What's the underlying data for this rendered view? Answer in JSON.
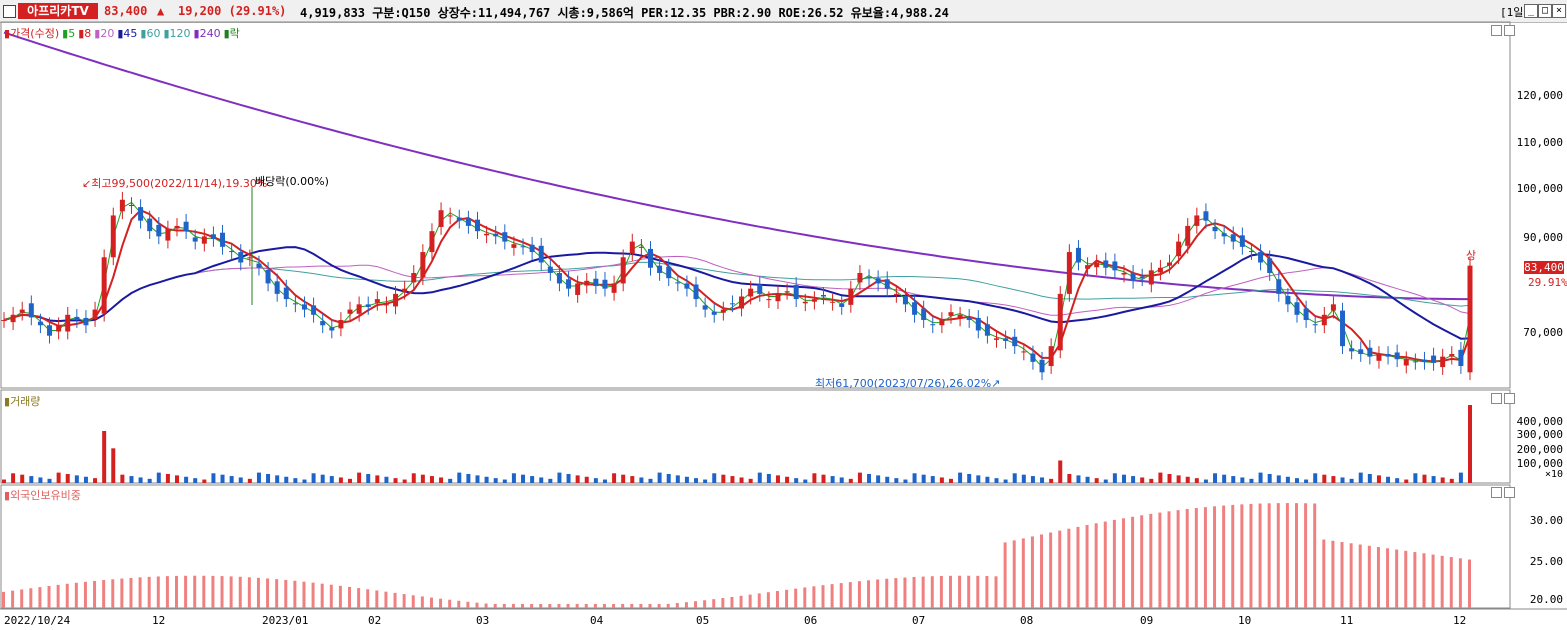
{
  "header": {
    "stock_name": "아프리카TV",
    "price": "83,400",
    "arrow": "▲",
    "change": "19,200",
    "change_pct": "(29.91%)",
    "info": "4,919,833  구분:Q150  상장수:11,494,767  시총:9,586억  PER:12.35  PBR:2.90  ROE:26.52  유보율:4,988.24",
    "period": "[1일]",
    "btn_min": "_",
    "btn_max": "□",
    "btn_close": "×"
  },
  "price_panel": {
    "legend": [
      {
        "label": "가격(수정)",
        "color": "#d42020"
      },
      {
        "label": "5",
        "color": "#20a020"
      },
      {
        "label": "8",
        "color": "#d42020"
      },
      {
        "label": "20",
        "color": "#c060c0"
      },
      {
        "label": "45",
        "color": "#1a1aa0"
      },
      {
        "label": "60",
        "color": "#40a0a0"
      },
      {
        "label": "120",
        "color": "#40a0a0"
      },
      {
        "label": "240",
        "color": "#8030c0"
      },
      {
        "label": "락",
        "color": "#208020"
      }
    ],
    "yticks": [
      "120,000",
      "110,000",
      "100,000",
      "90,000",
      "70,000"
    ],
    "high_annotation": "최고99,500(2022/11/14),19.30%",
    "dividend_annotation": "배당락(0.00%)",
    "low_annotation": "최저61,700(2023/07/26),26.02%",
    "last_price_tag": "83,400",
    "last_pct_tag": "29.91%",
    "limit_up_label": "상"
  },
  "volume_panel": {
    "legend": "거래량",
    "yticks": [
      "400,000",
      "300,000",
      "200,000",
      "100,000"
    ],
    "unit": "×10"
  },
  "foreign_panel": {
    "legend": "외국인보유비중",
    "yticks": [
      "30.00",
      "25.00",
      "20.00"
    ]
  },
  "xaxis": [
    "2022/10/24",
    "12",
    "2023/01",
    "02",
    "03",
    "04",
    "05",
    "06",
    "07",
    "08",
    "09",
    "10",
    "11",
    "12"
  ],
  "colors": {
    "up": "#d42020",
    "down": "#1e64c8",
    "ma240": "#8030c0",
    "ma45": "#1a1aa0"
  },
  "chart_data": {
    "type": "candlestick",
    "ylim": [
      60000,
      130000
    ],
    "closes": [
      73000,
      74000,
      75000,
      73500,
      72000,
      70000,
      72000,
      74000,
      73000,
      72000,
      75000,
      85000,
      93000,
      96000,
      95000,
      92000,
      90000,
      89000,
      90500,
      91000,
      90000,
      88000,
      89000,
      88500,
      87000,
      86000,
      84000,
      85000,
      83000,
      80000,
      78000,
      77000,
      76000,
      75000,
      74000,
      72000,
      71000,
      73000,
      75000,
      76000,
      75500,
      77000,
      76000,
      78000,
      79000,
      82000,
      86000,
      90000,
      94000,
      93000,
      92000,
      91000,
      90000,
      89500,
      89000,
      88000,
      87500,
      87000,
      86000,
      84000,
      82000,
      80000,
      79000,
      80000,
      80500,
      79500,
      79000,
      80000,
      85000,
      88000,
      87000,
      83000,
      82000,
      81000,
      80000,
      79000,
      77000,
      75000,
      74000,
      75000,
      76000,
      77500,
      79000,
      78000,
      77000,
      78000,
      78500,
      77000,
      76500,
      77000,
      77500,
      76500,
      75500,
      79000,
      82000,
      81000,
      80000,
      79000,
      78000,
      76000,
      74000,
      73000,
      72000,
      73000,
      74500,
      74000,
      73000,
      71000,
      70000,
      69500,
      69000,
      68000,
      67000,
      65000,
      63000,
      68000,
      78000,
      86000,
      84000,
      83500,
      84000,
      83000,
      82500,
      82000,
      80500,
      81000,
      82500,
      83000,
      84000,
      88000,
      91000,
      93000,
      92000,
      90000,
      89000,
      88000,
      87000,
      86000,
      84000,
      82000,
      78000,
      76000,
      74000,
      73000,
      72000,
      74000,
      76000,
      68000,
      67000,
      66500,
      66000,
      66500,
      66000,
      65500,
      65500,
      65000,
      65000,
      64800,
      66000,
      66500,
      64200,
      83400
    ],
    "ma240_start": 128000,
    "ma240_end": 77000,
    "volume_max": 450000,
    "last_volume": 450000,
    "foreign_ratio_range": [
      19,
      33
    ]
  }
}
